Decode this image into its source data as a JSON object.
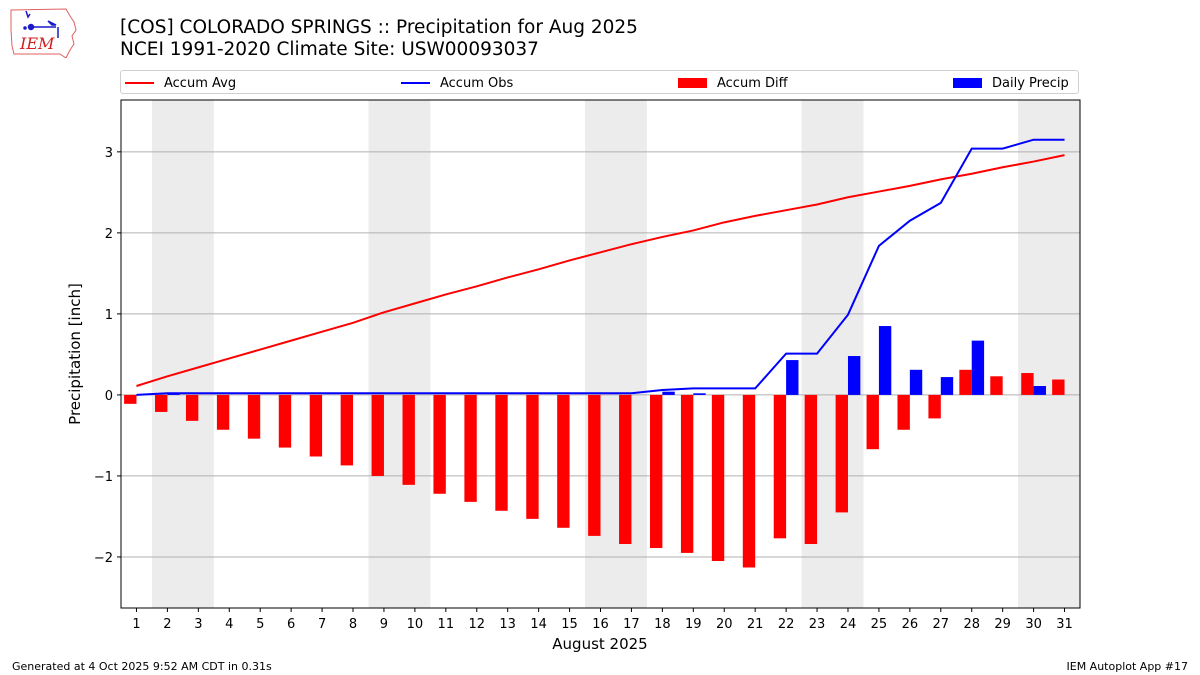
{
  "header": {
    "title_line1": "[COS] COLORADO SPRINGS :: Precipitation for Aug 2025",
    "title_line2": "NCEI 1991-2020 Climate Site: USW00093037",
    "logo_text": "IEM"
  },
  "legend": [
    {
      "label": "Accum Avg",
      "kind": "line",
      "color": "#ff0000"
    },
    {
      "label": "Accum Obs",
      "kind": "line",
      "color": "#0000ff"
    },
    {
      "label": "Accum Diff",
      "kind": "patch",
      "color": "#ff0000"
    },
    {
      "label": "Daily Precip",
      "kind": "patch",
      "color": "#0000ff"
    }
  ],
  "footer": {
    "left": "Generated at 4 Oct 2025 9:52 AM CDT in 0.31s",
    "right": "IEM Autoplot App #17"
  },
  "chart_data": {
    "type": "bar",
    "title": "[COS] COLORADO SPRINGS :: Precipitation for Aug 2025",
    "subtitle": "NCEI 1991-2020 Climate Site: USW00093037",
    "xlabel": "August 2025",
    "ylabel": "Precipitation [inch]",
    "xlim": [
      0.5,
      31.5
    ],
    "ylim": [
      -2.63,
      3.64
    ],
    "yticks": [
      -2,
      -1,
      0,
      1,
      2,
      3
    ],
    "ytick_labels": [
      "−2",
      "−1",
      "0",
      "1",
      "2",
      "3"
    ],
    "grid": "y",
    "legend_position": "top (above plot, expanded)",
    "weekend_shading": [
      [
        2,
        3
      ],
      [
        9,
        10
      ],
      [
        16,
        17
      ],
      [
        23,
        24
      ],
      [
        30,
        31
      ]
    ],
    "shade_color": "#ececec",
    "x": [
      1,
      2,
      3,
      4,
      5,
      6,
      7,
      8,
      9,
      10,
      11,
      12,
      13,
      14,
      15,
      16,
      17,
      18,
      19,
      20,
      21,
      22,
      23,
      24,
      25,
      26,
      27,
      28,
      29,
      30,
      31
    ],
    "series": [
      {
        "name": "Accum Avg",
        "type": "line",
        "color": "#ff0000",
        "values": [
          0.11,
          0.23,
          0.34,
          0.45,
          0.56,
          0.67,
          0.78,
          0.89,
          1.02,
          1.13,
          1.24,
          1.34,
          1.45,
          1.55,
          1.66,
          1.76,
          1.86,
          1.95,
          2.03,
          2.13,
          2.21,
          2.28,
          2.35,
          2.44,
          2.51,
          2.58,
          2.66,
          2.73,
          2.81,
          2.88,
          2.96
        ]
      },
      {
        "name": "Accum Obs",
        "type": "line",
        "color": "#0000ff",
        "values": [
          0.0,
          0.02,
          0.02,
          0.02,
          0.02,
          0.02,
          0.02,
          0.02,
          0.02,
          0.02,
          0.02,
          0.02,
          0.02,
          0.02,
          0.02,
          0.02,
          0.02,
          0.06,
          0.08,
          0.08,
          0.08,
          0.51,
          0.51,
          0.99,
          1.84,
          2.15,
          2.37,
          3.04,
          3.04,
          3.15,
          3.15
        ]
      },
      {
        "name": "Accum Diff",
        "type": "bar",
        "color": "#ff0000",
        "values": [
          -0.11,
          -0.21,
          -0.32,
          -0.43,
          -0.54,
          -0.65,
          -0.76,
          -0.87,
          -1.0,
          -1.11,
          -1.22,
          -1.32,
          -1.43,
          -1.53,
          -1.64,
          -1.74,
          -1.84,
          -1.89,
          -1.95,
          -2.05,
          -2.13,
          -1.77,
          -1.84,
          -1.45,
          -0.67,
          -0.43,
          -0.29,
          0.31,
          0.23,
          0.27,
          0.19
        ]
      },
      {
        "name": "Daily Precip",
        "type": "bar",
        "color": "#0000ff",
        "values": [
          0.0,
          0.02,
          0.0,
          0.0,
          0.0,
          0.0,
          0.0,
          0.0,
          0.0,
          0.0,
          0.0,
          0.0,
          0.0,
          0.0,
          0.0,
          0.0,
          0.0,
          0.04,
          0.02,
          0.0,
          0.0,
          0.43,
          0.0,
          0.48,
          0.85,
          0.31,
          0.22,
          0.67,
          0.0,
          0.11,
          0.0
        ]
      }
    ]
  }
}
